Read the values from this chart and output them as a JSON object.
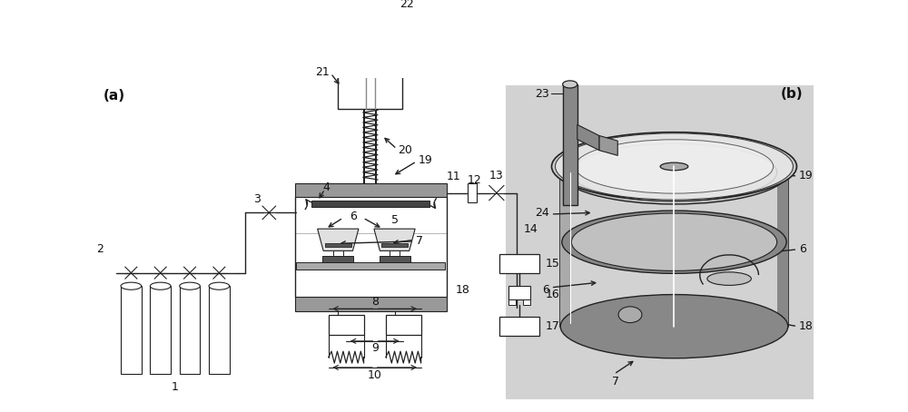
{
  "fig_width": 10.0,
  "fig_height": 4.54,
  "bg_color": "#ffffff",
  "lc": "#222222",
  "gray1": "#aaaaaa",
  "gray2": "#cccccc",
  "gray3": "#888888",
  "gray4": "#555555",
  "gray5": "#dddddd",
  "b_bg": "#d4d4d4"
}
